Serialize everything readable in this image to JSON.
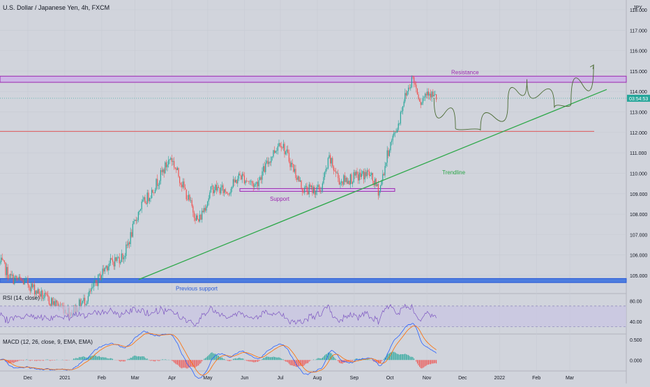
{
  "chart_data": {
    "type": "candlestick",
    "symbol_title": "U.S. Dollar / Japanese Yen, 4h, FXCM",
    "currency": "JPY",
    "price_axis_ticks": [
      "118.000",
      "117.000",
      "116.000",
      "115.000",
      "114.000",
      "113.000",
      "112.000",
      "111.000",
      "110.000",
      "109.000",
      "108.000",
      "107.000",
      "106.000",
      "105.000"
    ],
    "price_ylim": [
      104.8,
      118.3
    ],
    "last_price": 113.67,
    "last_price_label": "03:54:53",
    "time_axis_labels": [
      "Dec",
      "2021",
      "Feb",
      "Mar",
      "Apr",
      "May",
      "Jun",
      "Jul",
      "Aug",
      "Sep",
      "Oct",
      "Nov",
      "Dec",
      "2022",
      "Feb",
      "Mar"
    ],
    "ohlc_path": [
      [
        "2020-11-09",
        105.6
      ],
      [
        "2020-11-16",
        104.9
      ],
      [
        "2020-12-01",
        104.6
      ],
      [
        "2020-12-15",
        103.9
      ],
      [
        "2021-01-06",
        103.2
      ],
      [
        "2021-01-20",
        103.9
      ],
      [
        "2021-02-05",
        105.5
      ],
      [
        "2021-02-20",
        106.0
      ],
      [
        "2021-03-05",
        108.3
      ],
      [
        "2021-03-15",
        109.1
      ],
      [
        "2021-03-31",
        110.8
      ],
      [
        "2021-04-15",
        108.7
      ],
      [
        "2021-04-23",
        107.6
      ],
      [
        "2021-05-05",
        109.3
      ],
      [
        "2021-05-18",
        109.1
      ],
      [
        "2021-05-28",
        109.9
      ],
      [
        "2021-06-10",
        109.4
      ],
      [
        "2021-06-24",
        110.9
      ],
      [
        "2021-07-01",
        111.6
      ],
      [
        "2021-07-20",
        109.2
      ],
      [
        "2021-08-04",
        109.2
      ],
      [
        "2021-08-11",
        110.7
      ],
      [
        "2021-08-20",
        109.6
      ],
      [
        "2021-09-02",
        109.8
      ],
      [
        "2021-09-13",
        110.0
      ],
      [
        "2021-09-22",
        109.1
      ],
      [
        "2021-09-30",
        111.2
      ],
      [
        "2021-10-08",
        112.4
      ],
      [
        "2021-10-12",
        113.5
      ],
      [
        "2021-10-20",
        114.7
      ],
      [
        "2021-10-27",
        113.5
      ],
      [
        "2021-11-02",
        114.1
      ],
      [
        "2021-11-07",
        113.7
      ]
    ],
    "rsi": {
      "label": "RSI (14, close)",
      "ticks": [
        "80.00",
        "40.00"
      ],
      "upper_band": 70,
      "lower_band": 30,
      "ylim": [
        20,
        90
      ]
    },
    "macd": {
      "label": "MACD (12, 26, close, 9, EMA, EMA)",
      "ticks": [
        "0.500",
        "0.000"
      ],
      "ylim": [
        -0.2,
        0.55
      ]
    },
    "annotations": {
      "resistance": {
        "label": "Resistance",
        "price_low": 114.45,
        "price_high": 114.75
      },
      "support": {
        "label": "Support",
        "price_low": 109.1,
        "price_high": 109.2
      },
      "lower_zone": {
        "label": "Previous support",
        "price_low": 104.65,
        "price_high": 104.85
      },
      "red_level": 112.05,
      "trendline": {
        "label": "Trendline",
        "from": [
          "2021-03-04",
          104.8
        ],
        "to": [
          "2022-04-01",
          114.1
        ]
      },
      "projection": [
        [
          "2021-11-07",
          113.7
        ],
        [
          "2021-11-25",
          112.2
        ],
        [
          "2021-12-16",
          112.1
        ],
        [
          "2022-01-08",
          113.4
        ],
        [
          "2022-01-24",
          114.6
        ],
        [
          "2022-02-16",
          113.2
        ],
        [
          "2022-03-02",
          113.4
        ],
        [
          "2022-03-21",
          115.3
        ]
      ]
    },
    "colors": {
      "up": "#26a69a",
      "down": "#ef5350",
      "resistance_fill": "#cdb6e6",
      "resistance_line": "#9c27b0",
      "support_line": "#9c27b0",
      "lower_zone_fill": "#4d7ddf",
      "trendline": "#2ea84a",
      "projection": "#4b6b34",
      "rsi_line": "#7e57c2",
      "macd_line": "#2962ff",
      "signal_line": "#ff6d00",
      "last_price_badge": "#26a69a",
      "red_level": "#e05a5a"
    }
  }
}
